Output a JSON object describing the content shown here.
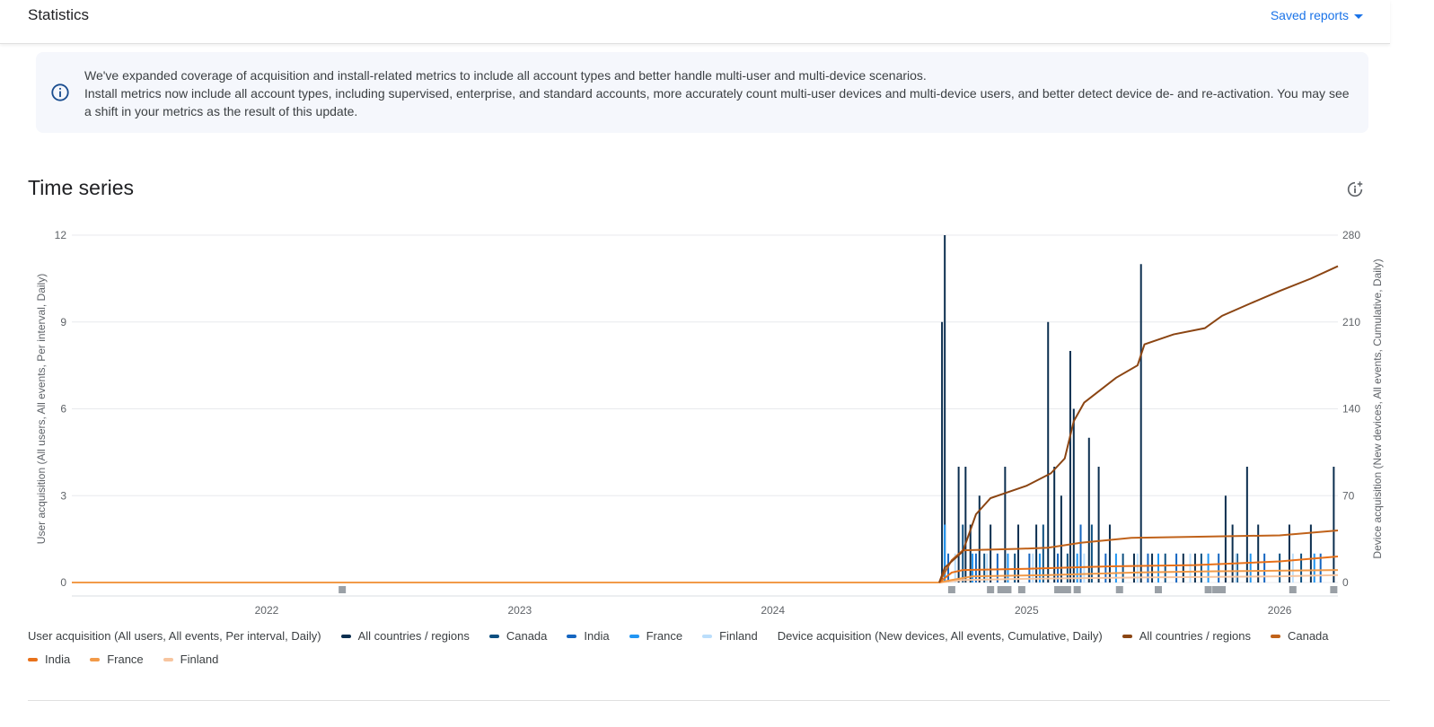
{
  "header": {
    "title": "Statistics",
    "saved_reports": "Saved reports"
  },
  "banner": {
    "line1": "We've expanded coverage of acquisition and install-related metrics to include all account types and better handle multi-user and multi-device scenarios.",
    "line2": "Install metrics now include all account types, including supervised, enterprise, and standard accounts, more accurately count multi-user devices and multi-device users, and better detect device de- and re-activation. You may see a shift in your metrics as the result of this update."
  },
  "section": {
    "title": "Time series"
  },
  "colors": {
    "grid": "#e8eaed",
    "axis_text": "#5f6368",
    "annotation": "#9aa0a6",
    "left_series": [
      "#0b2e4f",
      "#0d4f80",
      "#1565c0",
      "#2196f3",
      "#bbdefb"
    ],
    "right_series": [
      "#8b4513",
      "#c0621a",
      "#e8711a",
      "#f29a48",
      "#f7c59f"
    ]
  },
  "chart_data": {
    "type": "line",
    "x_ticks": [
      "2022",
      "2023",
      "2024",
      "2025",
      "2026"
    ],
    "left_axis": {
      "label": "User acquisition (All users, All events, Per interval, Daily)",
      "ticks": [
        "12",
        "9",
        "6",
        "3",
        "0"
      ],
      "range": [
        0,
        12
      ]
    },
    "right_axis": {
      "label": "Device acquisition (New devices, All events, Cumulative, Daily)",
      "ticks": [
        "280",
        "210",
        "140",
        "70",
        "0"
      ],
      "range": [
        0,
        280
      ]
    },
    "x_range": [
      "2021-03-26",
      "2026-03-26"
    ],
    "series_left": [
      {
        "name": "All countries / regions",
        "points": [
          [
            "2024-09-01",
            9
          ],
          [
            "2024-09-05",
            12
          ],
          [
            "2024-09-25",
            4
          ],
          [
            "2024-10-05",
            4
          ],
          [
            "2024-10-12",
            2
          ],
          [
            "2024-10-25",
            3
          ],
          [
            "2024-11-10",
            2
          ],
          [
            "2024-12-01",
            4
          ],
          [
            "2024-12-20",
            2
          ],
          [
            "2025-01-15",
            2
          ],
          [
            "2025-02-01",
            9
          ],
          [
            "2025-02-10",
            4
          ],
          [
            "2025-02-20",
            3
          ],
          [
            "2025-03-05",
            8
          ],
          [
            "2025-03-10",
            6
          ],
          [
            "2025-04-01",
            5
          ],
          [
            "2025-04-15",
            4
          ],
          [
            "2025-05-01",
            2
          ],
          [
            "2025-06-05",
            1
          ],
          [
            "2025-06-15",
            11
          ],
          [
            "2025-07-01",
            1
          ],
          [
            "2025-08-15",
            1
          ],
          [
            "2025-09-01",
            1
          ],
          [
            "2025-10-15",
            3
          ],
          [
            "2025-10-25",
            2
          ],
          [
            "2025-11-15",
            4
          ],
          [
            "2025-12-01",
            2
          ],
          [
            "2026-01-15",
            2
          ],
          [
            "2026-02-15",
            2
          ],
          [
            "2026-03-20",
            4
          ]
        ]
      },
      {
        "name": "Canada",
        "points": [
          [
            "2024-10-01",
            2
          ],
          [
            "2024-11-01",
            1
          ],
          [
            "2024-12-15",
            1
          ],
          [
            "2025-01-25",
            2
          ],
          [
            "2025-03-01",
            1
          ],
          [
            "2025-04-05",
            2
          ],
          [
            "2025-05-20",
            1
          ],
          [
            "2025-07-20",
            1
          ],
          [
            "2025-09-10",
            1
          ],
          [
            "2025-11-01",
            1
          ],
          [
            "2026-01-01",
            1
          ],
          [
            "2026-02-01",
            1
          ]
        ]
      },
      {
        "name": "India",
        "points": [
          [
            "2024-09-10",
            1
          ],
          [
            "2024-10-20",
            1
          ],
          [
            "2024-11-20",
            1
          ],
          [
            "2025-01-05",
            1
          ],
          [
            "2025-02-15",
            1
          ],
          [
            "2025-03-20",
            2
          ],
          [
            "2025-04-25",
            1
          ],
          [
            "2025-06-25",
            1
          ],
          [
            "2025-08-05",
            1
          ],
          [
            "2025-10-05",
            1
          ],
          [
            "2025-12-10",
            1
          ],
          [
            "2026-03-01",
            1
          ]
        ]
      },
      {
        "name": "France",
        "points": [
          [
            "2024-09-05",
            2
          ],
          [
            "2024-10-15",
            1
          ],
          [
            "2024-12-05",
            1
          ],
          [
            "2025-01-20",
            1
          ],
          [
            "2025-03-15",
            1
          ],
          [
            "2025-05-10",
            1
          ],
          [
            "2025-07-10",
            1
          ],
          [
            "2025-09-20",
            1
          ],
          [
            "2025-11-20",
            1
          ],
          [
            "2026-02-20",
            1
          ]
        ]
      },
      {
        "name": "Finland",
        "points": [
          [
            "2024-09-20",
            1
          ],
          [
            "2024-11-05",
            1
          ],
          [
            "2025-01-10",
            1
          ],
          [
            "2025-03-25",
            1
          ],
          [
            "2025-06-10",
            1
          ],
          [
            "2025-08-25",
            1
          ],
          [
            "2025-10-30",
            1
          ],
          [
            "2026-01-20",
            1
          ]
        ]
      }
    ],
    "series_right": [
      {
        "name": "All countries / regions",
        "points": [
          [
            "2024-08-28",
            0
          ],
          [
            "2024-09-05",
            12
          ],
          [
            "2024-10-01",
            25
          ],
          [
            "2024-10-20",
            55
          ],
          [
            "2024-11-10",
            68
          ],
          [
            "2024-12-01",
            72
          ],
          [
            "2025-01-01",
            78
          ],
          [
            "2025-02-05",
            88
          ],
          [
            "2025-02-25",
            100
          ],
          [
            "2025-03-10",
            130
          ],
          [
            "2025-03-25",
            145
          ],
          [
            "2025-05-10",
            165
          ],
          [
            "2025-06-10",
            175
          ],
          [
            "2025-06-20",
            192
          ],
          [
            "2025-08-01",
            200
          ],
          [
            "2025-09-15",
            205
          ],
          [
            "2025-10-10",
            215
          ],
          [
            "2025-11-20",
            225
          ],
          [
            "2026-01-01",
            235
          ],
          [
            "2026-02-15",
            245
          ],
          [
            "2026-03-26",
            255
          ]
        ]
      },
      {
        "name": "Canada",
        "points": [
          [
            "2024-08-28",
            0
          ],
          [
            "2024-09-15",
            18
          ],
          [
            "2024-10-01",
            26
          ],
          [
            "2024-12-15",
            27
          ],
          [
            "2025-02-01",
            28
          ],
          [
            "2025-03-20",
            32
          ],
          [
            "2025-06-01",
            36
          ],
          [
            "2025-09-15",
            37
          ],
          [
            "2026-01-01",
            38
          ],
          [
            "2026-03-26",
            42
          ]
        ]
      },
      {
        "name": "India",
        "points": [
          [
            "2024-08-28",
            0
          ],
          [
            "2024-09-15",
            8
          ],
          [
            "2024-10-01",
            10
          ],
          [
            "2025-01-01",
            11
          ],
          [
            "2025-05-01",
            13
          ],
          [
            "2025-09-01",
            14
          ],
          [
            "2026-01-01",
            17
          ],
          [
            "2026-03-26",
            21
          ]
        ]
      },
      {
        "name": "France",
        "points": [
          [
            "2024-08-28",
            0
          ],
          [
            "2024-09-15",
            2
          ],
          [
            "2024-10-15",
            5
          ],
          [
            "2025-02-01",
            6
          ],
          [
            "2025-06-01",
            8
          ],
          [
            "2025-10-01",
            9
          ],
          [
            "2026-03-26",
            10
          ]
        ]
      },
      {
        "name": "Finland",
        "points": [
          [
            "2024-08-28",
            0
          ],
          [
            "2024-10-01",
            2
          ],
          [
            "2025-01-01",
            3
          ],
          [
            "2025-06-01",
            4
          ],
          [
            "2026-01-01",
            5
          ],
          [
            "2026-03-26",
            6
          ]
        ]
      }
    ],
    "annotations": [
      "2022-04-20",
      "2024-09-15",
      "2024-11-10",
      "2024-11-25",
      "2024-12-05",
      "2024-12-25",
      "2025-02-15",
      "2025-02-25",
      "2025-03-01",
      "2025-03-15",
      "2025-05-15",
      "2025-07-10",
      "2025-09-20",
      "2025-10-01",
      "2025-10-05",
      "2025-10-10",
      "2026-01-20",
      "2026-03-20"
    ],
    "grid": true,
    "legend_position": "bottom"
  }
}
